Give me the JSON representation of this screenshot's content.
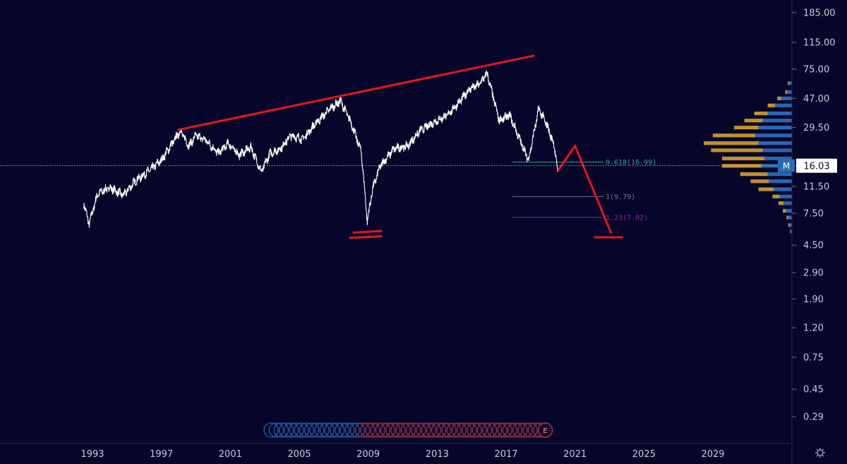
{
  "chart_data": {
    "type": "line",
    "scale": "log",
    "ylim": [
      0.2,
      230
    ],
    "xlim": [
      1991,
      2033
    ],
    "y_ticks": [
      "185.00",
      "115.00",
      "75.00",
      "47.00",
      "29.50",
      "16.00",
      "11.50",
      "7.50",
      "4.50",
      "2.90",
      "1.90",
      "1.20",
      "0.75",
      "0.45",
      "0.29"
    ],
    "x_ticks": [
      "1993",
      "1997",
      "2001",
      "2005",
      "2009",
      "2013",
      "2017",
      "2021",
      "2025",
      "2029"
    ],
    "price_series": {
      "name": "",
      "color": "#ffffff",
      "x": [
        1992.5,
        1992.8,
        1993.3,
        1994.0,
        1994.8,
        1995.5,
        1996.3,
        1997.0,
        1997.6,
        1998.1,
        1998.6,
        1999.0,
        1999.6,
        2000.3,
        2000.9,
        2001.5,
        2002.2,
        2002.8,
        2003.3,
        2003.9,
        2004.5,
        2005.2,
        2006.0,
        2006.8,
        2007.4,
        2008.0,
        2008.6,
        2008.95,
        2009.25,
        2009.7,
        2010.5,
        2011.3,
        2012.0,
        2012.8,
        2013.6,
        2014.4,
        2014.9,
        2015.4,
        2015.9,
        2016.6,
        2017.2,
        2017.7,
        2018.3,
        2018.9,
        2019.4,
        2019.8,
        2020.0
      ],
      "y": [
        8.8,
        6.3,
        10.2,
        11.3,
        10.0,
        12.6,
        14.8,
        17.5,
        22.6,
        28.0,
        22.0,
        26.0,
        24.0,
        19.5,
        23.0,
        19.0,
        21.5,
        14.5,
        19.5,
        21.0,
        26.0,
        24.5,
        32.0,
        40.0,
        45.0,
        32.0,
        20.0,
        6.6,
        11.0,
        16.0,
        21.0,
        22.0,
        28.0,
        32.0,
        36.0,
        46.0,
        55.0,
        58.0,
        70.0,
        33.0,
        36.0,
        26.0,
        17.5,
        40.0,
        30.0,
        22.0,
        14.5
      ]
    },
    "overlays": {
      "trend_line": {
        "x": [
          1998.0,
          2018.6
        ],
        "y": [
          28.5,
          93.0
        ],
        "color": "#e5161d"
      },
      "projection": {
        "x": [
          2020.0,
          2021.0,
          2023.1
        ],
        "y": [
          14.8,
          22.0,
          5.45
        ],
        "color": "#e5161d"
      },
      "bottom_marks": [
        {
          "x": [
            2008.1,
            2009.8
          ],
          "y": [
            5.5,
            5.65
          ]
        },
        {
          "x": [
            2007.9,
            2009.8
          ],
          "y": [
            5.05,
            5.2
          ]
        },
        {
          "x": [
            2022.1,
            2023.8
          ],
          "y": [
            5.1,
            5.1
          ]
        }
      ]
    },
    "fib_levels": [
      {
        "label": "0.618(16.99)",
        "value": 16.99,
        "color": "#26a69a"
      },
      {
        "label": "1(9.79)",
        "value": 9.79,
        "color": "#7a7a7a"
      },
      {
        "label": "1.23(7.02)",
        "value": 7.02,
        "color": "#8e24aa"
      }
    ],
    "last_price": {
      "label": "16.03",
      "value": 16.03,
      "marker": "M"
    },
    "volume_profile": {
      "colors": {
        "down": "#c99a2e",
        "up": "#2b6cb8",
        "neutral": "#3a3330"
      },
      "bins": [
        {
          "price": 60.0,
          "down": 2,
          "up": 5
        },
        {
          "price": 52.0,
          "down": 3,
          "up": 8
        },
        {
          "price": 47.0,
          "down": 6,
          "up": 18
        },
        {
          "price": 42.0,
          "down": 12,
          "up": 28
        },
        {
          "price": 37.0,
          "down": 22,
          "up": 40
        },
        {
          "price": 33.0,
          "down": 30,
          "up": 48
        },
        {
          "price": 29.5,
          "down": 40,
          "up": 55
        },
        {
          "price": 26.0,
          "down": 70,
          "up": 60
        },
        {
          "price": 23.0,
          "down": 90,
          "up": 55
        },
        {
          "price": 20.5,
          "down": 85,
          "up": 48
        },
        {
          "price": 18.0,
          "down": 70,
          "up": 45
        },
        {
          "price": 16.0,
          "down": 65,
          "up": 50
        },
        {
          "price": 14.0,
          "down": 45,
          "up": 40
        },
        {
          "price": 12.5,
          "down": 30,
          "up": 38
        },
        {
          "price": 11.0,
          "down": 25,
          "up": 30
        },
        {
          "price": 9.8,
          "down": 12,
          "up": 20
        },
        {
          "price": 8.8,
          "down": 8,
          "up": 14
        },
        {
          "price": 7.8,
          "down": 5,
          "up": 10
        },
        {
          "price": 7.0,
          "down": 3,
          "up": 6
        },
        {
          "price": 6.2,
          "down": 2,
          "up": 4
        },
        {
          "price": 5.6,
          "down": 1,
          "up": 2
        }
      ]
    },
    "event_bubbles": {
      "count_blue": 18,
      "count_red": 36,
      "final_label": "E"
    }
  }
}
